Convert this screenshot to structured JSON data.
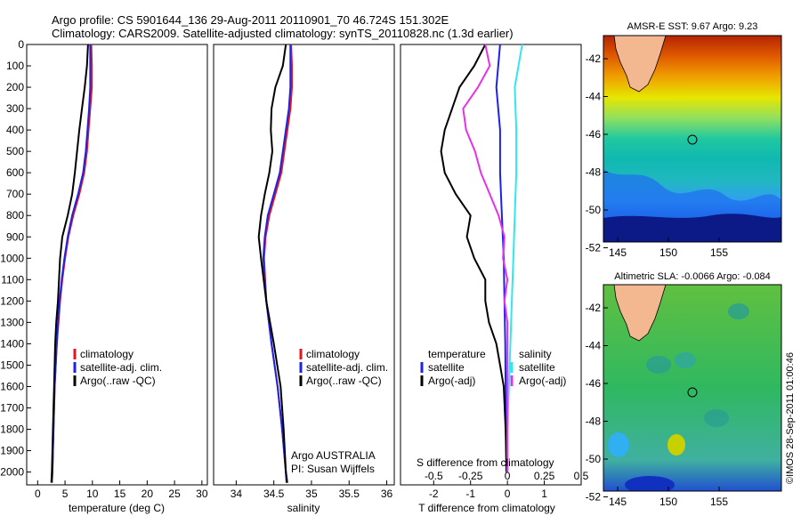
{
  "header": {
    "line1": "Argo profile: CS 5901644_136 29-Aug-2011 20110901_70 46.724S 151.302E",
    "line2": "Climatology: CARS2009. Satellite-adjusted climatology: synTS_20110828.nc (1.3d earlier)"
  },
  "colors": {
    "climatology": "#e8141e",
    "satellite": "#1e22e6",
    "argo": "#000000",
    "sat_salinity": "#33e6ee",
    "argo_salinity": "#e632e6"
  },
  "chart_data": [
    {
      "type": "line",
      "panel": "temperature",
      "xlabel": "temperature (deg C)",
      "ylabel": "",
      "xlim": [
        -2,
        31
      ],
      "ylim": [
        2060,
        0
      ],
      "xticks": [
        0,
        5,
        10,
        15,
        20,
        25,
        30
      ],
      "yticks": [
        0,
        100,
        200,
        300,
        400,
        500,
        600,
        700,
        800,
        900,
        1000,
        1100,
        1200,
        1300,
        1400,
        1500,
        1600,
        1700,
        1800,
        1900,
        2000
      ],
      "legend": [
        "climatology",
        "satellite-adj. clim.",
        "Argo(..raw -QC)"
      ],
      "series": [
        {
          "name": "climatology",
          "depth": [
            0,
            100,
            200,
            300,
            400,
            500,
            600,
            700,
            800,
            900,
            1000,
            1100,
            1200,
            1300,
            1400,
            1500,
            1600,
            1700,
            1800,
            1900,
            2000,
            2050
          ],
          "values": [
            9.8,
            9.9,
            9.9,
            9.6,
            9.3,
            9.0,
            8.5,
            7.6,
            6.5,
            5.6,
            5.0,
            4.5,
            4.1,
            3.8,
            3.5,
            3.3,
            3.1,
            3.0,
            2.9,
            2.8,
            2.7,
            2.6
          ]
        },
        {
          "name": "satellite-adj. clim.",
          "depth": [
            0,
            100,
            200,
            300,
            400,
            500,
            600,
            700,
            800,
            900,
            1000,
            1100,
            1200,
            1300,
            1400,
            1500,
            1600,
            1700,
            1800,
            1900,
            2000,
            2050
          ],
          "values": [
            9.6,
            9.6,
            9.6,
            9.4,
            9.1,
            8.8,
            8.3,
            7.4,
            6.3,
            5.5,
            4.9,
            4.4,
            4.0,
            3.7,
            3.5,
            3.3,
            3.1,
            3.0,
            2.9,
            2.8,
            2.7,
            2.6
          ]
        },
        {
          "name": "Argo(..raw -QC)",
          "depth": [
            0,
            100,
            200,
            300,
            400,
            500,
            600,
            700,
            800,
            900,
            1000,
            1100,
            1200,
            1300,
            1400,
            1500,
            1600,
            1700,
            1800,
            1900,
            2000,
            2050
          ],
          "values": [
            9.2,
            9.0,
            8.6,
            8.1,
            7.6,
            7.2,
            6.8,
            6.3,
            5.5,
            4.5,
            4.1,
            3.9,
            3.7,
            3.4,
            3.2,
            3.1,
            3.0,
            2.9,
            2.8,
            2.7,
            2.6,
            2.5
          ]
        }
      ]
    },
    {
      "type": "line",
      "panel": "salinity",
      "xlabel": "salinity",
      "ylabel": "",
      "xlim": [
        33.7,
        36.1
      ],
      "ylim": [
        2060,
        0
      ],
      "xticks": [
        34,
        34.5,
        35,
        35.5,
        36
      ],
      "xticklabels": [
        "34",
        "34.5",
        "35",
        "35.5",
        "36"
      ],
      "legend": [
        "climatology",
        "satellite-adj. clim.",
        "Argo(..raw -QC)"
      ],
      "annotation": [
        "Argo AUSTRALIA",
        "PI: Susan Wijffels"
      ],
      "series": [
        {
          "name": "climatology",
          "depth": [
            0,
            100,
            200,
            300,
            400,
            500,
            600,
            700,
            800,
            900,
            1000,
            1200,
            1400,
            1600,
            1800,
            2000,
            2050
          ],
          "values": [
            34.73,
            34.74,
            34.74,
            34.72,
            34.68,
            34.64,
            34.6,
            34.52,
            34.44,
            34.39,
            34.37,
            34.4,
            34.47,
            34.55,
            34.61,
            34.66,
            34.68
          ]
        },
        {
          "name": "satellite-adj. clim.",
          "depth": [
            0,
            100,
            200,
            300,
            400,
            500,
            600,
            700,
            800,
            900,
            1000,
            1200,
            1400,
            1600,
            1800,
            2000,
            2050
          ],
          "values": [
            34.72,
            34.72,
            34.72,
            34.7,
            34.66,
            34.62,
            34.58,
            34.5,
            34.42,
            34.38,
            34.36,
            34.4,
            34.47,
            34.55,
            34.61,
            34.66,
            34.68
          ]
        },
        {
          "name": "Argo(..raw -QC)",
          "depth": [
            0,
            100,
            200,
            300,
            400,
            500,
            600,
            700,
            800,
            900,
            1000,
            1200,
            1400,
            1600,
            1800,
            2000,
            2050
          ],
          "values": [
            34.66,
            34.62,
            34.52,
            34.47,
            34.46,
            34.48,
            34.44,
            34.38,
            34.33,
            34.3,
            34.33,
            34.4,
            34.5,
            34.59,
            34.63,
            34.66,
            34.67
          ]
        }
      ]
    },
    {
      "type": "line",
      "panel": "difference",
      "xlabel": "T difference from climatology",
      "top_axis_label": "S difference from climatology",
      "xlim": [
        -2.9,
        2.0
      ],
      "ylim": [
        2060,
        0
      ],
      "xticks": [
        -2,
        -1,
        0,
        1
      ],
      "xticklabels": [
        "-2",
        "-1",
        "0",
        "1"
      ],
      "s_xticks": [
        -0.5,
        -0.25,
        0,
        0.25,
        0.5
      ],
      "s_xticklabels": [
        "-0.5",
        "-0.25",
        "0",
        "0.25",
        "0.5"
      ],
      "legend_temperature": [
        "temperature",
        "satellite",
        "Argo(-adj)"
      ],
      "legend_salinity": [
        "salinity",
        "satellite",
        "Argo(-adj)"
      ],
      "series": [
        {
          "name": "satellite",
          "depth": [
            0,
            200,
            400,
            600,
            800,
            1000,
            1200,
            1400,
            1600,
            1800,
            2000
          ],
          "values": [
            -0.2,
            -0.3,
            -0.2,
            -0.2,
            -0.15,
            -0.1,
            -0.08,
            -0.06,
            -0.05,
            -0.04,
            -0.03
          ]
        },
        {
          "name": "Argo(-adj)",
          "depth": [
            0,
            100,
            200,
            300,
            400,
            500,
            600,
            700,
            800,
            900,
            1000,
            1100,
            1200,
            1300,
            1400,
            1500,
            1600,
            1800,
            2000
          ],
          "values": [
            -0.6,
            -0.9,
            -1.3,
            -1.5,
            -1.7,
            -1.8,
            -1.7,
            -1.4,
            -1.0,
            -1.1,
            -0.9,
            -0.6,
            -0.6,
            -0.5,
            -0.3,
            -0.2,
            -0.1,
            -0.05,
            -0.02
          ]
        },
        {
          "name": "satellite",
          "depth": [
            0,
            200,
            400,
            600,
            800,
            1000,
            1200,
            1400,
            1600,
            1800,
            2000
          ],
          "values": [
            0.1,
            0.05,
            0.06,
            0.06,
            0.05,
            0.04,
            0.03,
            0.02,
            0.01,
            0.0,
            0.0
          ]
        },
        {
          "name": "Argo(-adj)",
          "depth": [
            0,
            100,
            200,
            300,
            400,
            500,
            600,
            700,
            800,
            900,
            1000,
            1100,
            1200,
            1300,
            1400,
            1600,
            1800,
            2000
          ],
          "values": [
            -0.15,
            -0.12,
            -0.2,
            -0.3,
            -0.28,
            -0.22,
            -0.18,
            -0.12,
            -0.06,
            -0.02,
            -0.03,
            0,
            -0.02,
            0,
            0,
            0,
            0,
            0
          ]
        }
      ]
    }
  ],
  "maps": [
    {
      "title": "AMSR-E SST: 9.67  Argo: 9.23",
      "xticks": [
        "145",
        "150",
        "155"
      ],
      "yticks": [
        "-42",
        "-44",
        "-46",
        "-48",
        "-50",
        "-52"
      ]
    },
    {
      "title": "Altimetric SLA: -0.0066  Argo: -0.084",
      "xticks": [
        "145",
        "150",
        "155"
      ],
      "yticks": [
        "-42",
        "-44",
        "-46",
        "-48",
        "-50",
        "-52"
      ]
    }
  ],
  "credit": "©IMOS 28-Sep-2011 01:00:46"
}
